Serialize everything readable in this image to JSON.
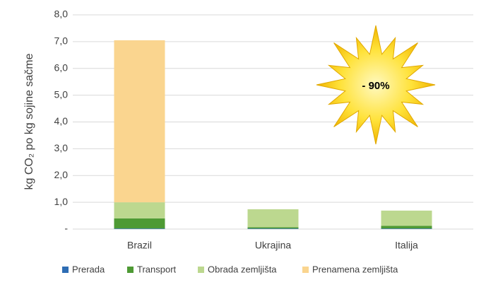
{
  "chart_data": {
    "type": "stacked_bar",
    "y_label": "kg CO₂ po kg sojine sačme",
    "annotation": "- 90%",
    "categories": [
      "Brazil",
      "Ukrajina",
      "Italija"
    ],
    "series": [
      {
        "name": "Prerada",
        "color": "#2e6db4",
        "values": [
          0.02,
          0.02,
          0.02
        ]
      },
      {
        "name": "Transport",
        "color": "#4e9a34",
        "values": [
          0.38,
          0.05,
          0.1
        ]
      },
      {
        "name": "Obrada zemljišta",
        "color": "#bcd88f",
        "values": [
          0.6,
          0.67,
          0.57
        ]
      },
      {
        "name": "Prenamena zemljišta",
        "color": "#fad58f",
        "values": [
          6.05,
          0,
          0
        ]
      }
    ],
    "ylim": [
      0,
      8
    ],
    "yticks": [
      {
        "value": 0,
        "label": "-"
      },
      {
        "value": 1,
        "label": "1,0"
      },
      {
        "value": 2,
        "label": "2,0"
      },
      {
        "value": 3,
        "label": "3,0"
      },
      {
        "value": 4,
        "label": "4,0"
      },
      {
        "value": 5,
        "label": "5,0"
      },
      {
        "value": 6,
        "label": "6,0"
      },
      {
        "value": 7,
        "label": "7,0"
      },
      {
        "value": 8,
        "label": "8,0"
      }
    ],
    "grid": true,
    "legend": "bottom"
  }
}
